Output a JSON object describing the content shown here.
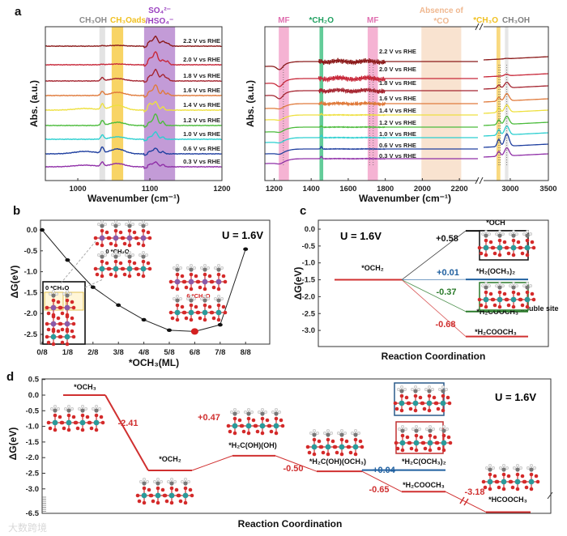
{
  "panels": {
    "a": "a",
    "b": "b",
    "c": "c",
    "d": "d"
  },
  "watermark": "大数跨境",
  "chart_data": [
    {
      "id": "a_left",
      "type": "line",
      "xlabel": "Wavenumber (cm⁻¹)",
      "ylabel": "Abs. (a.u.)",
      "xlim": [
        955,
        1200
      ],
      "xticks": [
        1000,
        1100,
        1200
      ],
      "bands": [
        {
          "label": "CH₃OH",
          "from": 1030,
          "to": 1038,
          "color": "#dedede",
          "text_color": "#8a8a8a"
        },
        {
          "label": "CH₃Oads",
          "from": 1047,
          "to": 1063,
          "color": "#f7cd4a",
          "text_color": "#f0c020"
        },
        {
          "label": "SO₄²⁻",
          "label2": "/HSO₄⁻",
          "from": 1092,
          "to": 1135,
          "color": "#b88ad0",
          "text_color": "#9a40c0"
        }
      ],
      "series": [
        {
          "name": "2.2 V vs RHE",
          "color": "#8b1a1a",
          "peaks": [
            [
              1034,
              0.5,
              3
            ],
            [
              1055,
              1,
              10
            ],
            [
              1108,
              12,
              3
            ],
            [
              1100,
              6,
              3
            ],
            [
              1118,
              6,
              3
            ],
            [
              1125,
              3,
              3
            ]
          ]
        },
        {
          "name": "2.0 V vs RHE",
          "color": "#c8283a",
          "peaks": [
            [
              1034,
              0.5,
              3
            ],
            [
              1055,
              1,
              10
            ],
            [
              1108,
              16,
              3
            ],
            [
              1100,
              8,
              3
            ],
            [
              1118,
              6,
              3
            ],
            [
              1125,
              4,
              2
            ]
          ]
        },
        {
          "name": "1.8 V vs RHE",
          "color": "#a52530",
          "peaks": [
            [
              1034,
              4,
              2
            ],
            [
              1055,
              3,
              10
            ],
            [
              1108,
              14,
              3
            ],
            [
              1100,
              6,
              3
            ],
            [
              1118,
              8,
              3
            ],
            [
              1125,
              3,
              2
            ]
          ]
        },
        {
          "name": "1.6 V vs RHE",
          "color": "#e07b3c",
          "peaks": [
            [
              1034,
              5,
              2
            ],
            [
              1055,
              4,
              10
            ],
            [
              1108,
              13,
              3
            ],
            [
              1100,
              5,
              3
            ],
            [
              1118,
              6,
              2
            ],
            [
              1125,
              3,
              2
            ]
          ]
        },
        {
          "name": "1.4 V vs RHE",
          "color": "#eee040",
          "peaks": [
            [
              1034,
              7,
              2
            ],
            [
              1055,
              6,
              10
            ],
            [
              1010,
              2,
              15
            ],
            [
              1108,
              10,
              3
            ],
            [
              1100,
              8,
              3
            ],
            [
              1118,
              4,
              2
            ]
          ]
        },
        {
          "name": "1.2 V vs RHE",
          "color": "#4cbc3c",
          "peaks": [
            [
              1034,
              6,
              2
            ],
            [
              1055,
              4,
              10
            ],
            [
              1108,
              14,
              3
            ],
            [
              1100,
              4,
              3
            ],
            [
              1118,
              5,
              2
            ]
          ]
        },
        {
          "name": "1.0 V vs RHE",
          "color": "#2ccfd0",
          "peaks": [
            [
              1034,
              5,
              2
            ],
            [
              1055,
              3,
              10
            ],
            [
              1108,
              9,
              3
            ],
            [
              1100,
              3,
              3
            ],
            [
              1118,
              3,
              2
            ]
          ]
        },
        {
          "name": "0.6 V vs RHE",
          "color": "#2040a0",
          "peaks": [
            [
              1034,
              7,
              2
            ],
            [
              1055,
              6,
              10
            ],
            [
              1010,
              3,
              15
            ],
            [
              1108,
              7,
              3
            ],
            [
              1100,
              3,
              3
            ],
            [
              1118,
              3,
              2
            ]
          ]
        },
        {
          "name": "0.3 V vs RHE",
          "color": "#9030a8",
          "peaks": [
            [
              1034,
              5,
              2
            ],
            [
              1055,
              4,
              10
            ],
            [
              1010,
              2,
              15
            ],
            [
              1108,
              6,
              3
            ],
            [
              1100,
              3,
              3
            ],
            [
              1118,
              3,
              2
            ]
          ]
        }
      ]
    },
    {
      "id": "a_right",
      "type": "line",
      "xlabel": "",
      "ylabel": "Abs. (a.u.)",
      "xlim": [
        1150,
        2300
      ],
      "xlim2": [
        2650,
        3500
      ],
      "axis_break": true,
      "xticks": [
        1200,
        1400,
        1600,
        1800,
        2000,
        2200
      ],
      "xticks2": [
        3000,
        3500
      ],
      "bands": [
        {
          "label": "MF",
          "from": 1225,
          "to": 1280,
          "color": "#f2a0c8",
          "text_color": "#e070b0"
        },
        {
          "label": "*CH₂O",
          "from": 1445,
          "to": 1465,
          "color": "#3cbf80",
          "text_color": "#20a060"
        },
        {
          "label": "MF",
          "from": 1705,
          "to": 1760,
          "color": "#f2a0c8",
          "text_color": "#e070b0"
        },
        {
          "label": "Absence of",
          "label2": "*CO",
          "from": 1995,
          "to": 2210,
          "color": "#f8dcc4",
          "text_color": "#f0b890"
        },
        {
          "label": "*CH₃O",
          "from": 2820,
          "to": 2870,
          "color": "#f7d060",
          "text_color": "#f0c020"
        },
        {
          "label": "CH₃OH",
          "from": 2930,
          "to": 2975,
          "color": "#e0e0e0",
          "text_color": "#808080"
        }
      ],
      "series": [
        {
          "name": "2.2 V vs RHE",
          "color": "#8b1a1a",
          "noise": 4,
          "peaks2": [
            [
              2950,
              0.5,
              25
            ]
          ]
        },
        {
          "name": "2.0 V vs RHE",
          "color": "#c8283a",
          "noise": 4,
          "peaks2": [
            [
              2950,
              2,
              25
            ]
          ]
        },
        {
          "name": "1.8 V vs RHE",
          "color": "#a52530",
          "noise": 3.5,
          "peaks2": [
            [
              2850,
              4,
              20
            ],
            [
              2955,
              7,
              30
            ]
          ]
        },
        {
          "name": "1.6 V vs RHE",
          "color": "#e07b3c",
          "noise": 2,
          "peaks2": [
            [
              2850,
              5,
              20
            ],
            [
              2955,
              9,
              30
            ]
          ]
        },
        {
          "name": "1.4 V vs RHE",
          "color": "#eee040",
          "noise": 0.5,
          "peaks2": [
            [
              2850,
              6,
              20
            ],
            [
              2955,
              9,
              30
            ]
          ]
        },
        {
          "name": "1.2 V vs RHE",
          "color": "#4cbc3c",
          "noise": 0.5,
          "peaks2": [
            [
              2850,
              6,
              20
            ],
            [
              2955,
              10,
              30
            ]
          ]
        },
        {
          "name": "1.0 V vs RHE",
          "color": "#2ccfd0",
          "noise": 0.5,
          "peaks2": [
            [
              2850,
              7,
              20
            ],
            [
              2955,
              11,
              30
            ]
          ]
        },
        {
          "name": "0.6 V vs RHE",
          "color": "#2040a0",
          "noise": 0.4,
          "peaks2": [
            [
              2850,
              9,
              20
            ],
            [
              2955,
              15,
              30
            ]
          ]
        },
        {
          "name": "0.3 V vs RHE",
          "color": "#9030a8",
          "noise": 0.4,
          "peaks2": [
            [
              2850,
              6,
              20
            ],
            [
              2955,
              10,
              30
            ]
          ]
        }
      ]
    },
    {
      "id": "b",
      "type": "line",
      "xlabel": "*OCH₃(ML)",
      "ylabel": "ΔG(eV)",
      "categories": [
        "0/8",
        "1/8",
        "2/8",
        "3/8",
        "4/8",
        "5/8",
        "6/8",
        "7/8",
        "8/8"
      ],
      "values": [
        0.0,
        -0.72,
        -1.37,
        -1.8,
        -2.15,
        -2.4,
        -2.43,
        -2.27,
        -0.46
      ],
      "highlight_index": 6,
      "ylim": [
        -2.7,
        0.2
      ],
      "yticks": [
        "0.0",
        "-0.5",
        "-1.0",
        "-1.5",
        "-2.0",
        "-2.5"
      ],
      "annotations": {
        "potential": "U = 1.6V",
        "inset_label": "0 *CH₃O",
        "struct_label_1": "0 *CH₂O",
        "struct_label_2": "6 *CH₂O"
      }
    },
    {
      "id": "c",
      "type": "line",
      "title": "",
      "xlabel": "Reaction Coordination",
      "ylabel": "ΔG(eV)",
      "ylim": [
        -3.3,
        0.2
      ],
      "yticks": [
        "0.0",
        "-0.5",
        "-1.0",
        "-1.5",
        "-2.0",
        "-2.5",
        "-3.0"
      ],
      "potential": "U = 1.6V",
      "start": {
        "label": "*OCH₂",
        "value": -1.5,
        "color": "#d03030"
      },
      "products": [
        {
          "label": "*OCH",
          "value": -0.05,
          "delta": "+0.58",
          "color": "#111111"
        },
        {
          "label": "*H₂(OCH₃)₂",
          "value": -1.49,
          "delta": "+0.01",
          "color": "#2060a0"
        },
        {
          "label": "*H₂COOCH₃",
          "sup": "double site",
          "value": -2.44,
          "delta": "-0.37",
          "color": "#2a7a2a"
        },
        {
          "label": "*H₂COOCH₃",
          "value": -3.18,
          "delta": "-0.68",
          "color": "#d03030"
        }
      ]
    },
    {
      "id": "d",
      "type": "line",
      "xlabel": "Reaction Coordination",
      "ylabel": "ΔG(eV)",
      "ylim": [
        -6.5,
        0.5
      ],
      "yticks": [
        "0.5",
        "0.0",
        "-0.5",
        "-1.0",
        "-1.5",
        "-2.0",
        "-2.5",
        "-3.0",
        "-6.5"
      ],
      "axis_break": true,
      "potential": "U = 1.6V",
      "levels": [
        {
          "label": "*OCH₃",
          "value": 0.0,
          "color": "#d03030"
        },
        {
          "label": "*OCH₂",
          "value": -2.41,
          "color": "#d03030"
        },
        {
          "label": "*H₂C(OH)(OH)",
          "value": -1.94,
          "color": "#d03030"
        },
        {
          "label": "*H₂C(OH)(OCH₃)",
          "value": -2.44,
          "color": "#d03030"
        },
        {
          "label": "*H₂C(OCH₃)₂",
          "value": -2.4,
          "color": "#2060a0"
        },
        {
          "label": "*H₂COOCH₃",
          "value": -3.09,
          "color": "#d03030"
        },
        {
          "label": "*HCOOCH₃",
          "value": -6.27,
          "color": "#d03030"
        }
      ],
      "steps": [
        {
          "delta": "-2.41",
          "color": "#d03030"
        },
        {
          "delta": "+0.47",
          "color": "#d03030"
        },
        {
          "delta": "-0.50",
          "color": "#d03030"
        },
        {
          "delta": "+0.04",
          "color": "#2060a0"
        },
        {
          "delta": "-0.65",
          "color": "#d03030"
        },
        {
          "delta": "-3.18",
          "color": "#d03030"
        }
      ]
    }
  ]
}
